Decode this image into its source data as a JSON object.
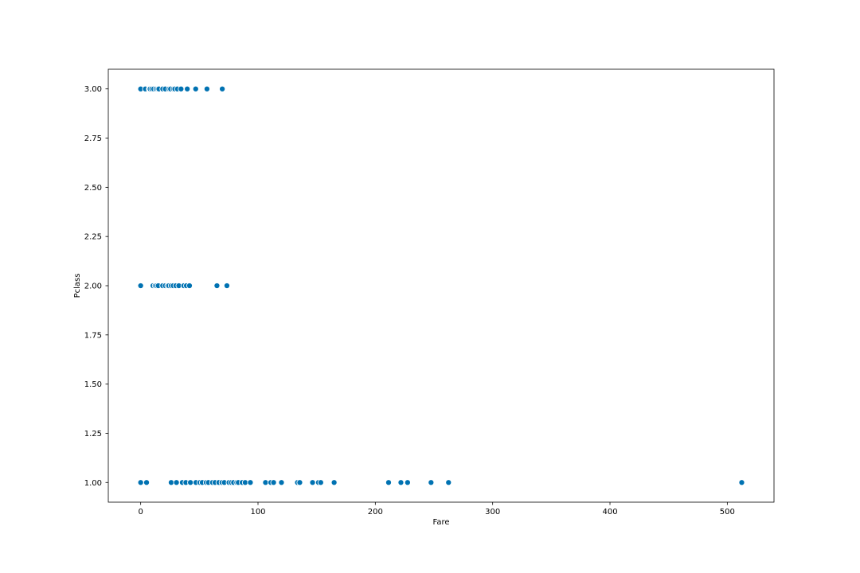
{
  "chart_data": {
    "type": "scatter",
    "title": "",
    "xlabel": "Fare",
    "ylabel": "Pclass",
    "xlim": [
      -27.6,
      539.8
    ],
    "ylim": [
      0.9,
      3.1
    ],
    "xticks": [
      0,
      100,
      200,
      300,
      400,
      500
    ],
    "xtick_labels": [
      "0",
      "100",
      "200",
      "300",
      "400",
      "500"
    ],
    "yticks": [
      1.0,
      1.25,
      1.5,
      1.75,
      2.0,
      2.25,
      2.5,
      2.75,
      3.0
    ],
    "ytick_labels": [
      "1.00",
      "1.25",
      "1.50",
      "1.75",
      "2.00",
      "2.25",
      "2.50",
      "2.75",
      "3.00"
    ],
    "grid": false,
    "marker_color": "#0072b2",
    "series": [
      {
        "points": [
          {
            "x": 0,
            "y": 3
          },
          {
            "x": 4,
            "y": 3
          },
          {
            "x": 7.25,
            "y": 3
          },
          {
            "x": 7.75,
            "y": 3
          },
          {
            "x": 8.05,
            "y": 3
          },
          {
            "x": 9.5,
            "y": 3
          },
          {
            "x": 11.1,
            "y": 3
          },
          {
            "x": 13,
            "y": 3
          },
          {
            "x": 14.5,
            "y": 3
          },
          {
            "x": 15.5,
            "y": 3
          },
          {
            "x": 18.8,
            "y": 3
          },
          {
            "x": 21,
            "y": 3
          },
          {
            "x": 24.2,
            "y": 3
          },
          {
            "x": 25.5,
            "y": 3
          },
          {
            "x": 27.9,
            "y": 3
          },
          {
            "x": 29.1,
            "y": 3
          },
          {
            "x": 31.3,
            "y": 3
          },
          {
            "x": 34.4,
            "y": 3
          },
          {
            "x": 39.7,
            "y": 3
          },
          {
            "x": 46.9,
            "y": 3
          },
          {
            "x": 56.5,
            "y": 3
          },
          {
            "x": 69.55,
            "y": 3
          },
          {
            "x": 0,
            "y": 2
          },
          {
            "x": 10.5,
            "y": 2
          },
          {
            "x": 12.35,
            "y": 2
          },
          {
            "x": 13.5,
            "y": 2
          },
          {
            "x": 15,
            "y": 2
          },
          {
            "x": 18.75,
            "y": 2
          },
          {
            "x": 21,
            "y": 2
          },
          {
            "x": 23,
            "y": 2
          },
          {
            "x": 24,
            "y": 2
          },
          {
            "x": 26,
            "y": 2
          },
          {
            "x": 27.75,
            "y": 2
          },
          {
            "x": 30,
            "y": 2
          },
          {
            "x": 32.5,
            "y": 2
          },
          {
            "x": 36.75,
            "y": 2
          },
          {
            "x": 39,
            "y": 2
          },
          {
            "x": 41.6,
            "y": 2
          },
          {
            "x": 65,
            "y": 2
          },
          {
            "x": 73.5,
            "y": 2
          },
          {
            "x": 0,
            "y": 1
          },
          {
            "x": 5,
            "y": 1
          },
          {
            "x": 26,
            "y": 1
          },
          {
            "x": 30.5,
            "y": 1
          },
          {
            "x": 35.5,
            "y": 1
          },
          {
            "x": 38.5,
            "y": 1
          },
          {
            "x": 42.4,
            "y": 1
          },
          {
            "x": 47.1,
            "y": 1
          },
          {
            "x": 50.5,
            "y": 1
          },
          {
            "x": 52.5,
            "y": 1
          },
          {
            "x": 55.9,
            "y": 1
          },
          {
            "x": 57.75,
            "y": 1
          },
          {
            "x": 61.2,
            "y": 1
          },
          {
            "x": 63.4,
            "y": 1
          },
          {
            "x": 66.6,
            "y": 1
          },
          {
            "x": 69.3,
            "y": 1
          },
          {
            "x": 71.3,
            "y": 1
          },
          {
            "x": 75.25,
            "y": 1
          },
          {
            "x": 77.3,
            "y": 1
          },
          {
            "x": 79.2,
            "y": 1
          },
          {
            "x": 81.9,
            "y": 1
          },
          {
            "x": 83.2,
            "y": 1
          },
          {
            "x": 86.5,
            "y": 1
          },
          {
            "x": 89.1,
            "y": 1
          },
          {
            "x": 93.5,
            "y": 1
          },
          {
            "x": 106.4,
            "y": 1
          },
          {
            "x": 110.9,
            "y": 1
          },
          {
            "x": 113.3,
            "y": 1
          },
          {
            "x": 120,
            "y": 1
          },
          {
            "x": 133.65,
            "y": 1
          },
          {
            "x": 135.6,
            "y": 1
          },
          {
            "x": 146.5,
            "y": 1
          },
          {
            "x": 151.55,
            "y": 1
          },
          {
            "x": 153.5,
            "y": 1
          },
          {
            "x": 164.9,
            "y": 1
          },
          {
            "x": 211.3,
            "y": 1
          },
          {
            "x": 221.8,
            "y": 1
          },
          {
            "x": 227.5,
            "y": 1
          },
          {
            "x": 247.5,
            "y": 1
          },
          {
            "x": 262.4,
            "y": 1
          },
          {
            "x": 512.3,
            "y": 1
          }
        ]
      }
    ]
  }
}
